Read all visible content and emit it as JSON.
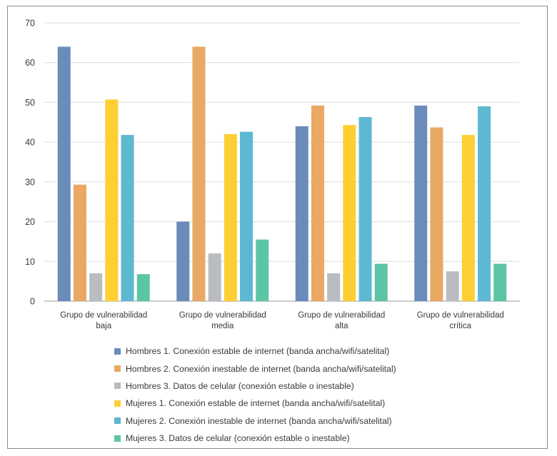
{
  "chart_data": {
    "type": "bar",
    "ylim": [
      0,
      70
    ],
    "yticks": [
      0,
      10,
      20,
      30,
      40,
      50,
      60,
      70
    ],
    "grid": true,
    "legend_position": "bottom",
    "categories": [
      [
        "Grupo de vulnerabilidad",
        "baja"
      ],
      [
        "Grupo de vulnerabilidad",
        "media"
      ],
      [
        "Grupo de vulnerabilidad",
        "alta"
      ],
      [
        "Grupo de vulnerabilidad",
        "crítica"
      ]
    ],
    "series": [
      {
        "name": "Hombres 1. Conexión estable de internet (banda ancha/wifi/satelital)",
        "color": "#6b8cba",
        "values": [
          64,
          20,
          44,
          49.2
        ]
      },
      {
        "name": "Hombres 2. Conexión inestable de internet (banda ancha/wifi/satelital)",
        "color": "#e9a864",
        "values": [
          29.3,
          64,
          49.2,
          43.7
        ]
      },
      {
        "name": "Hombres 3. Datos de celular (conexión estable o inestable)",
        "color": "#b9bcc1",
        "values": [
          7,
          12,
          7,
          7.5
        ]
      },
      {
        "name": "Mujeres 1. Conexión estable de internet (banda ancha/wifi/satelital)",
        "color": "#fdcf33",
        "values": [
          50.7,
          42,
          44.3,
          41.8
        ]
      },
      {
        "name": "Mujeres 2. Conexión inestable de internet (banda ancha/wifi/satelital)",
        "color": "#5db8d2",
        "values": [
          41.8,
          42.6,
          46.3,
          49
        ]
      },
      {
        "name": "Mujeres 3. Datos de celular (conexión estable o inestable)",
        "color": "#5cc5a6",
        "values": [
          6.8,
          15.5,
          9.4,
          9.4
        ]
      }
    ]
  }
}
